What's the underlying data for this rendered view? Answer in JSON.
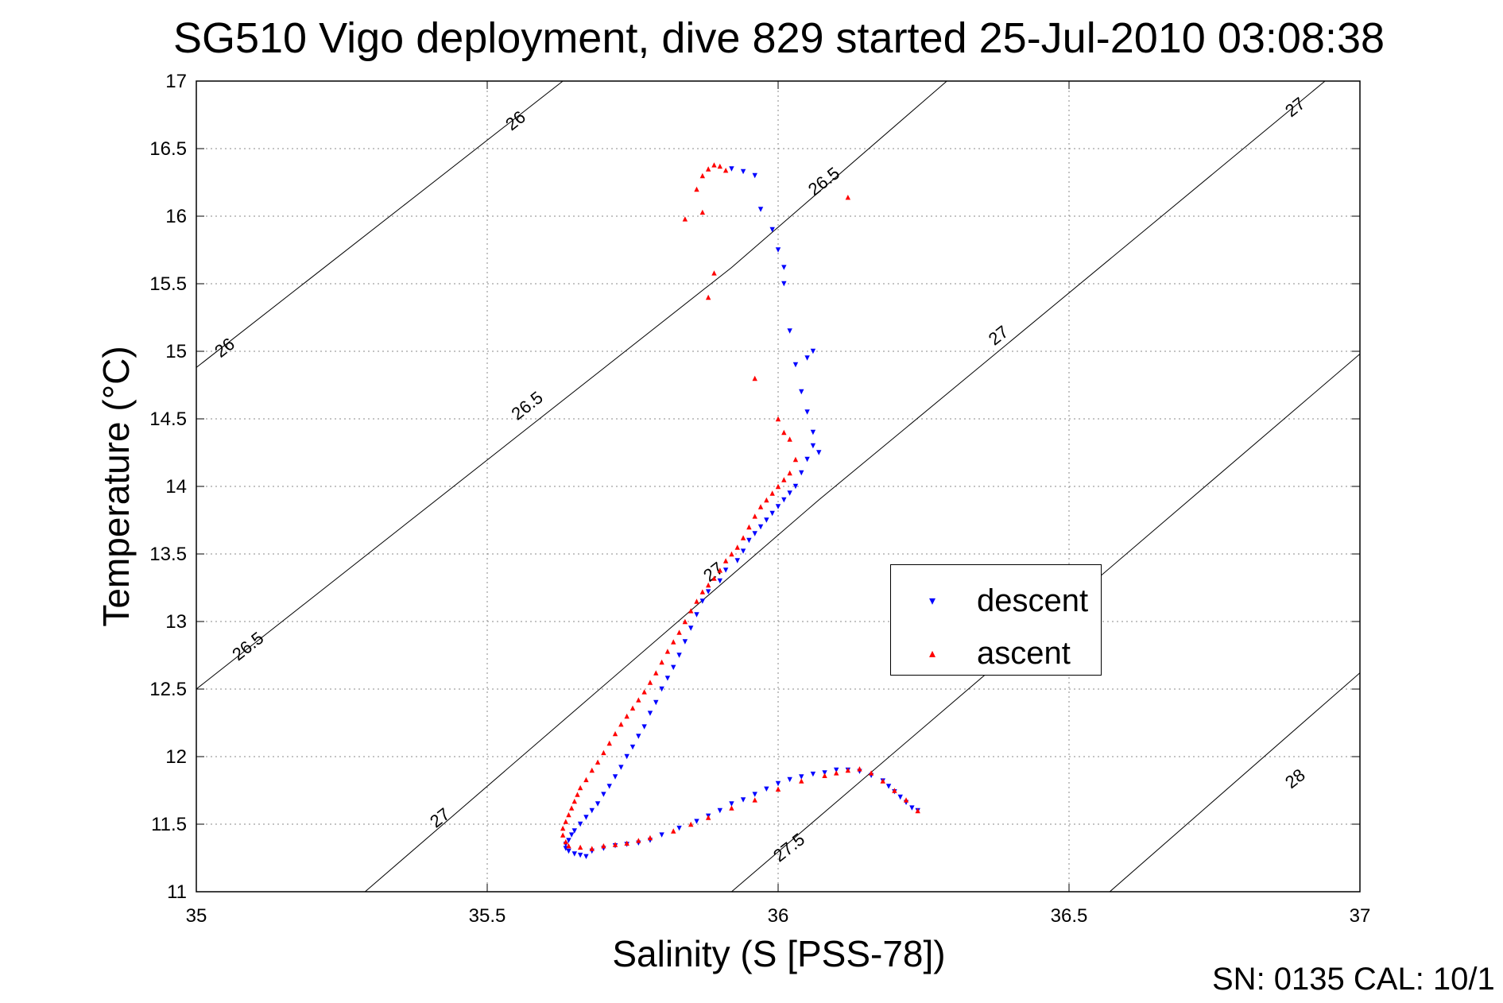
{
  "chart_data": {
    "type": "scatter",
    "title": "SG510 Vigo deployment, dive 829 started 25-Jul-2010 03:08:38",
    "xlabel": "Salinity (S [PSS-78])",
    "ylabel": "Temperature (°C)",
    "xlim": [
      35,
      37
    ],
    "ylim": [
      11,
      17
    ],
    "xticks": [
      35,
      35.5,
      36,
      36.5,
      37
    ],
    "yticks": [
      11,
      11.5,
      12,
      12.5,
      13,
      13.5,
      14,
      14.5,
      15,
      15.5,
      16,
      16.5,
      17
    ],
    "xtick_labels": [
      "35",
      "35.5",
      "36",
      "36.5",
      "37"
    ],
    "ytick_labels": [
      "11",
      "11.5",
      "12",
      "12.5",
      "13",
      "13.5",
      "14",
      "14.5",
      "15",
      "15.5",
      "16",
      "16.5",
      "17"
    ],
    "grid": true,
    "legend_position": "center-right",
    "density_contours": [
      {
        "label": "26",
        "points": [
          [
            35,
            14.88
          ],
          [
            35.63,
            17
          ]
        ]
      },
      {
        "label": "26.5",
        "points": [
          [
            35,
            12.5
          ],
          [
            35.92,
            15.62
          ],
          [
            36.29,
            17
          ]
        ]
      },
      {
        "label": "27",
        "points": [
          [
            35.29,
            11
          ],
          [
            36.07,
            13.9
          ],
          [
            36.94,
            17
          ]
        ]
      },
      {
        "label": "27.5",
        "points": [
          [
            35.92,
            11
          ],
          [
            37,
            14.98
          ]
        ]
      },
      {
        "label": "28",
        "points": [
          [
            36.57,
            11
          ],
          [
            37,
            12.62
          ]
        ]
      }
    ],
    "contour_label_text": [
      {
        "text": "26",
        "at": [
          35.55,
          16.7
        ]
      },
      {
        "text": "26",
        "at": [
          35.05,
          15.02
        ]
      },
      {
        "text": "26.5",
        "at": [
          36.08,
          16.25
        ]
      },
      {
        "text": "26.5",
        "at": [
          35.57,
          14.59
        ]
      },
      {
        "text": "26.5",
        "at": [
          35.09,
          12.81
        ]
      },
      {
        "text": "27",
        "at": [
          36.89,
          16.8
        ]
      },
      {
        "text": "27",
        "at": [
          36.38,
          15.11
        ]
      },
      {
        "text": "27",
        "at": [
          35.89,
          13.36
        ]
      },
      {
        "text": "27",
        "at": [
          35.42,
          11.54
        ]
      },
      {
        "text": "27.5",
        "at": [
          36.02,
          11.32
        ]
      },
      {
        "text": "28",
        "at": [
          36.89,
          11.83
        ]
      }
    ],
    "series": [
      {
        "name": "descent",
        "color": "#0000ff",
        "marker": "triangle-down",
        "x": [
          35.92,
          35.94,
          35.96,
          35.97,
          35.99,
          36.0,
          36.01,
          36.01,
          36.02,
          36.03,
          36.06,
          36.05,
          36.04,
          36.05,
          36.06,
          36.06,
          36.07,
          36.05,
          36.04,
          36.03,
          36.02,
          36.01,
          36.0,
          35.99,
          35.98,
          35.97,
          35.96,
          35.95,
          35.94,
          35.93,
          35.91,
          35.9,
          35.88,
          35.87,
          35.86,
          35.85,
          35.84,
          35.83,
          35.82,
          35.81,
          35.8,
          35.79,
          35.78,
          35.77,
          35.76,
          35.75,
          35.74,
          35.73,
          35.72,
          35.71,
          35.7,
          35.69,
          35.68,
          35.67,
          35.66,
          35.65,
          35.645,
          35.64,
          35.635,
          35.635,
          35.64,
          35.65,
          35.66,
          35.67,
          35.68,
          35.7,
          35.72,
          35.74,
          35.76,
          35.78,
          35.8,
          35.83,
          35.86,
          35.88,
          35.9,
          35.92,
          35.94,
          35.96,
          35.98,
          36.0,
          36.02,
          36.04,
          36.06,
          36.08,
          36.1,
          36.12,
          36.14,
          36.16,
          36.18,
          36.19,
          36.2,
          36.21,
          36.22,
          36.23,
          36.24
        ],
        "y": [
          16.35,
          16.33,
          16.3,
          16.05,
          15.9,
          15.75,
          15.62,
          15.5,
          15.15,
          14.9,
          15.0,
          14.95,
          14.7,
          14.55,
          14.4,
          14.3,
          14.25,
          14.2,
          14.1,
          14.0,
          13.95,
          13.9,
          13.85,
          13.8,
          13.75,
          13.7,
          13.65,
          13.6,
          13.52,
          13.45,
          13.38,
          13.3,
          13.22,
          13.15,
          13.05,
          12.95,
          12.85,
          12.75,
          12.66,
          12.58,
          12.5,
          12.4,
          12.32,
          12.22,
          12.15,
          12.07,
          12.0,
          11.92,
          11.85,
          11.78,
          11.72,
          11.65,
          11.6,
          11.55,
          11.5,
          11.45,
          11.42,
          11.38,
          11.35,
          11.32,
          11.3,
          11.28,
          11.27,
          11.26,
          11.3,
          11.32,
          11.34,
          11.35,
          11.36,
          11.38,
          11.42,
          11.47,
          11.52,
          11.56,
          11.6,
          11.65,
          11.68,
          11.72,
          11.76,
          11.8,
          11.83,
          11.85,
          11.87,
          11.88,
          11.9,
          11.9,
          11.89,
          11.86,
          11.82,
          11.78,
          11.74,
          11.7,
          11.66,
          11.62,
          11.6
        ]
      },
      {
        "name": "ascent",
        "color": "#ff0000",
        "marker": "triangle-up",
        "x": [
          35.84,
          35.86,
          35.87,
          35.88,
          35.89,
          35.9,
          35.91,
          35.87,
          35.89,
          35.88,
          35.96,
          36.0,
          36.01,
          36.02,
          36.03,
          36.02,
          36.01,
          36.0,
          35.99,
          35.98,
          35.97,
          35.96,
          35.95,
          35.94,
          35.93,
          35.92,
          35.91,
          35.9,
          35.89,
          35.88,
          35.87,
          35.86,
          35.85,
          35.84,
          35.83,
          35.82,
          35.81,
          35.8,
          35.79,
          35.78,
          35.77,
          35.76,
          35.75,
          35.74,
          35.73,
          35.72,
          35.71,
          35.7,
          35.69,
          35.68,
          35.67,
          35.66,
          35.655,
          35.65,
          35.645,
          35.64,
          35.635,
          35.63,
          35.63,
          35.635,
          35.64,
          35.66,
          35.68,
          35.7,
          35.72,
          35.74,
          35.76,
          35.78,
          35.82,
          35.85,
          35.88,
          35.92,
          35.96,
          36.0,
          36.04,
          36.08,
          36.1,
          36.12,
          36.14,
          36.16,
          36.18,
          36.2,
          36.22,
          36.24,
          36.12
        ],
        "y": [
          15.98,
          16.2,
          16.3,
          16.35,
          16.38,
          16.37,
          16.34,
          16.03,
          15.58,
          15.4,
          14.8,
          14.5,
          14.4,
          14.35,
          14.2,
          14.1,
          14.05,
          14.0,
          13.95,
          13.9,
          13.85,
          13.78,
          13.7,
          13.62,
          13.55,
          13.5,
          13.45,
          13.38,
          13.32,
          13.27,
          13.22,
          13.15,
          13.08,
          13.0,
          12.92,
          12.85,
          12.78,
          12.7,
          12.62,
          12.55,
          12.48,
          12.42,
          12.36,
          12.3,
          12.24,
          12.17,
          12.1,
          12.03,
          11.96,
          11.9,
          11.83,
          11.77,
          11.72,
          11.67,
          11.62,
          11.57,
          11.52,
          11.47,
          11.42,
          11.37,
          11.34,
          11.33,
          11.32,
          11.34,
          11.35,
          11.36,
          11.38,
          11.4,
          11.45,
          11.5,
          11.55,
          11.62,
          11.68,
          11.76,
          11.82,
          11.86,
          11.88,
          11.9,
          11.91,
          11.88,
          11.82,
          11.75,
          11.68,
          11.6,
          16.14
        ]
      }
    ]
  },
  "footer": {
    "text": "SN: 0135  CAL: 10/1"
  },
  "legend": {
    "descent": "descent",
    "ascent": "ascent"
  }
}
